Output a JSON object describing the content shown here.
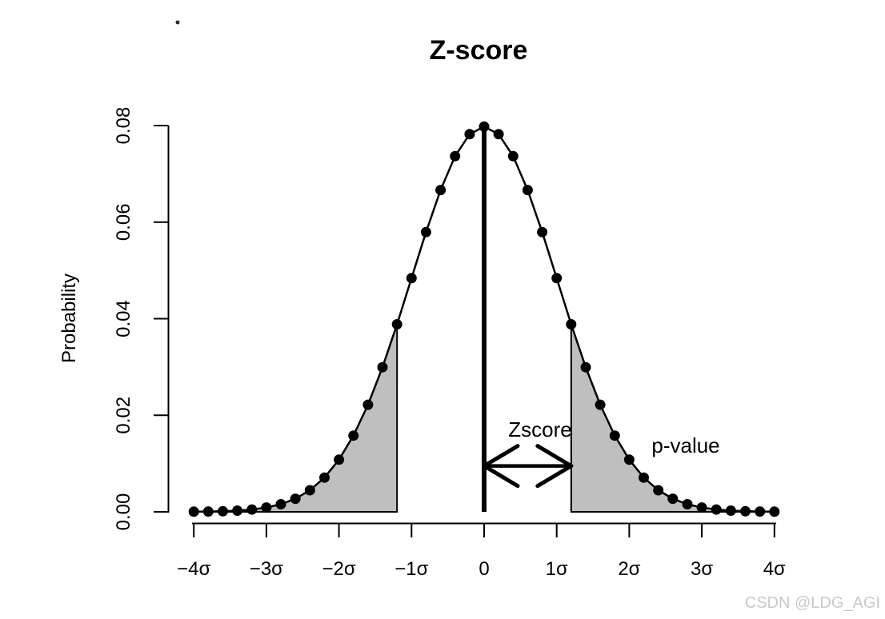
{
  "chart_data": {
    "type": "line",
    "title": "Z-score",
    "xlabel": "",
    "ylabel": "Probability",
    "x_axis": {
      "ticks": [
        {
          "z": -4,
          "label": "−4σ"
        },
        {
          "z": -3,
          "label": "−3σ"
        },
        {
          "z": -2,
          "label": "−2σ"
        },
        {
          "z": -1,
          "label": "−1σ"
        },
        {
          "z": 0,
          "label": "0"
        },
        {
          "z": 1,
          "label": "1σ"
        },
        {
          "z": 2,
          "label": "2σ"
        },
        {
          "z": 3,
          "label": "3σ"
        },
        {
          "z": 4,
          "label": "4σ"
        }
      ],
      "range": [
        -4,
        4
      ]
    },
    "y_axis": {
      "ticks": [
        {
          "value": 0.0,
          "label": "0.00"
        },
        {
          "value": 0.02,
          "label": "0.02"
        },
        {
          "value": 0.04,
          "label": "0.04"
        },
        {
          "value": 0.06,
          "label": "0.06"
        },
        {
          "value": 0.08,
          "label": "0.08"
        }
      ],
      "range": [
        0,
        0.08
      ]
    },
    "points": {
      "z": [
        -4,
        -3.8,
        -3.6,
        -3.4,
        -3.2,
        -3,
        -2.8,
        -2.6,
        -2.4,
        -2.2,
        -2,
        -1.8,
        -1.6,
        -1.4,
        -1.2,
        -1,
        -0.8,
        -0.6,
        -0.4,
        -0.2,
        0,
        0.2,
        0.4,
        0.6,
        0.8,
        1,
        1.2,
        1.4,
        1.6,
        1.8,
        2,
        2.2,
        2.4,
        2.6,
        2.8,
        3,
        3.2,
        3.4,
        3.6,
        3.8,
        4
      ],
      "probability": [
        3e-05,
        6e-05,
        0.00012,
        0.00025,
        0.00048,
        0.00089,
        0.00158,
        0.00272,
        0.00448,
        0.00709,
        0.0108,
        0.01579,
        0.02218,
        0.02995,
        0.03884,
        0.04839,
        0.05794,
        0.06665,
        0.07365,
        0.07821,
        0.07979,
        0.07821,
        0.07365,
        0.06665,
        0.05794,
        0.04839,
        0.03884,
        0.02995,
        0.02218,
        0.01579,
        0.0108,
        0.00709,
        0.00448,
        0.00272,
        0.00158,
        0.00089,
        0.00048,
        0.00025,
        0.00012,
        6e-05,
        3e-05
      ]
    },
    "shaded_regions": [
      {
        "z_from": -4,
        "z_to": -1.2,
        "fill": "#bfbfbf"
      },
      {
        "z_from": 1.2,
        "z_to": 4,
        "fill": "#bfbfbf"
      }
    ],
    "center_line": {
      "z": 0,
      "p_from": 0,
      "p_to": 0.07979
    },
    "arrow": {
      "z_from": 0,
      "z_to": 1.2,
      "p": 0.0095
    },
    "annotations": {
      "zscore_label": "Zscore",
      "p_value_label": "p-value"
    },
    "colors": {
      "curve": "#000000",
      "region_fill": "#bfbfbf",
      "axis": "#000000",
      "watermark": "#c9c9c9"
    }
  },
  "watermark": "CSDN @LDG_AGI"
}
